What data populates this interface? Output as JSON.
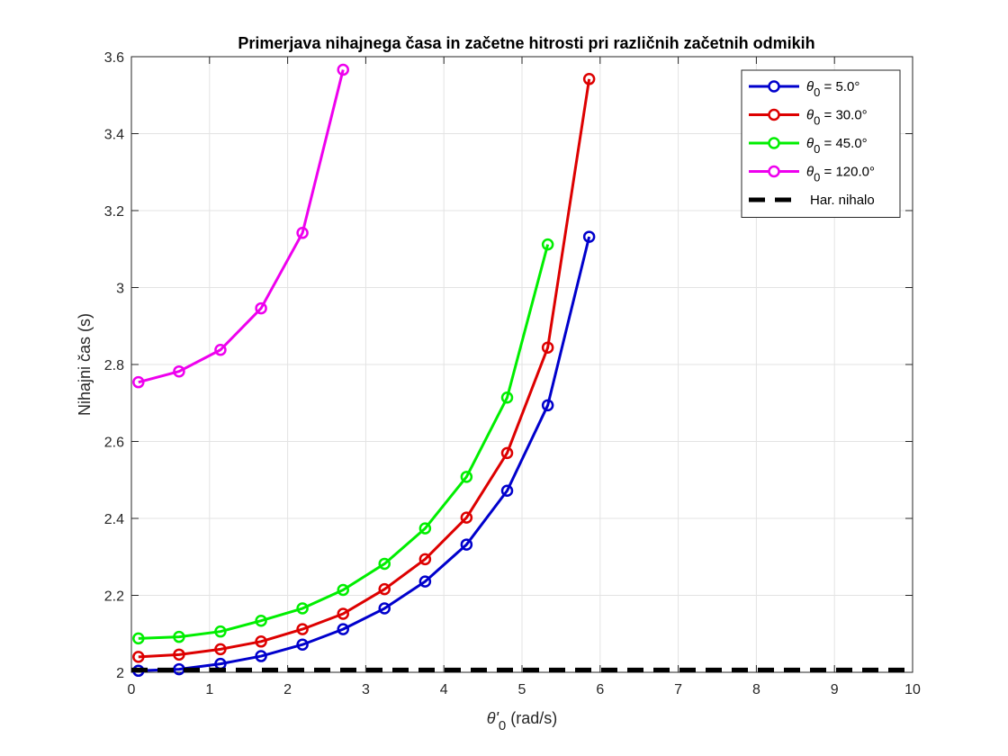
{
  "chart_data": {
    "type": "line",
    "title": "Primerjava nihajnega časa in začetne hitrosti pri različnih začetnih odmikih",
    "xlabel": {
      "main": "θ'",
      "sub": "0",
      "unit": " (rad/s)"
    },
    "ylabel": "Nihajni čas (s)",
    "xlim": [
      0,
      10
    ],
    "ylim": [
      2,
      3.6
    ],
    "xticks": [
      "0",
      "1",
      "2",
      "3",
      "4",
      "5",
      "6",
      "7",
      "8",
      "9",
      "10"
    ],
    "yticks": [
      "2",
      "2.2",
      "2.4",
      "2.6",
      "2.8",
      "3",
      "3.2",
      "3.4",
      "3.6"
    ],
    "grid": true,
    "legend_position": "top-right",
    "series": [
      {
        "name": "θ0 = 5.0°",
        "legend_sym": "θ",
        "legend_sub": "0",
        "legend_rest": " = 5.0°",
        "color": "#0000cc",
        "x": [
          0.09,
          0.61,
          1.14,
          1.66,
          2.19,
          2.71,
          3.24,
          3.76,
          4.29,
          4.81,
          5.33,
          5.86
        ],
        "y": [
          2.004,
          2.008,
          2.022,
          2.042,
          2.072,
          2.112,
          2.166,
          2.236,
          2.332,
          2.472,
          2.694,
          3.132
        ]
      },
      {
        "name": "θ0 = 30.0°",
        "legend_sym": "θ",
        "legend_sub": "0",
        "legend_rest": " = 30.0°",
        "color": "#dd0000",
        "x": [
          0.09,
          0.61,
          1.14,
          1.66,
          2.19,
          2.71,
          3.24,
          3.76,
          4.29,
          4.81,
          5.33,
          5.86
        ],
        "y": [
          2.04,
          2.046,
          2.06,
          2.08,
          2.112,
          2.152,
          2.216,
          2.294,
          2.402,
          2.57,
          2.844,
          3.542
        ]
      },
      {
        "name": "θ0 = 45.0°",
        "legend_sym": "θ",
        "legend_sub": "0",
        "legend_rest": " = 45.0°",
        "color": "#00ee00",
        "x": [
          0.09,
          0.61,
          1.14,
          1.66,
          2.19,
          2.71,
          3.24,
          3.76,
          4.29,
          4.81,
          5.33
        ],
        "y": [
          2.088,
          2.092,
          2.106,
          2.134,
          2.166,
          2.214,
          2.282,
          2.374,
          2.508,
          2.714,
          3.112
        ]
      },
      {
        "name": "θ0 = 120.0°",
        "legend_sym": "θ",
        "legend_sub": "0",
        "legend_rest": " = 120.0°",
        "color": "#ee00ee",
        "x": [
          0.09,
          0.61,
          1.14,
          1.66,
          2.19,
          2.71
        ],
        "y": [
          2.754,
          2.782,
          2.838,
          2.946,
          3.142,
          3.566
        ]
      },
      {
        "name": "Har. nihalo",
        "legend_sym": "",
        "legend_sub": "",
        "legend_rest": "Har. nihalo",
        "color": "#000000",
        "dashed": true,
        "x": [
          0,
          10
        ],
        "y": [
          2.006,
          2.006
        ]
      }
    ]
  }
}
